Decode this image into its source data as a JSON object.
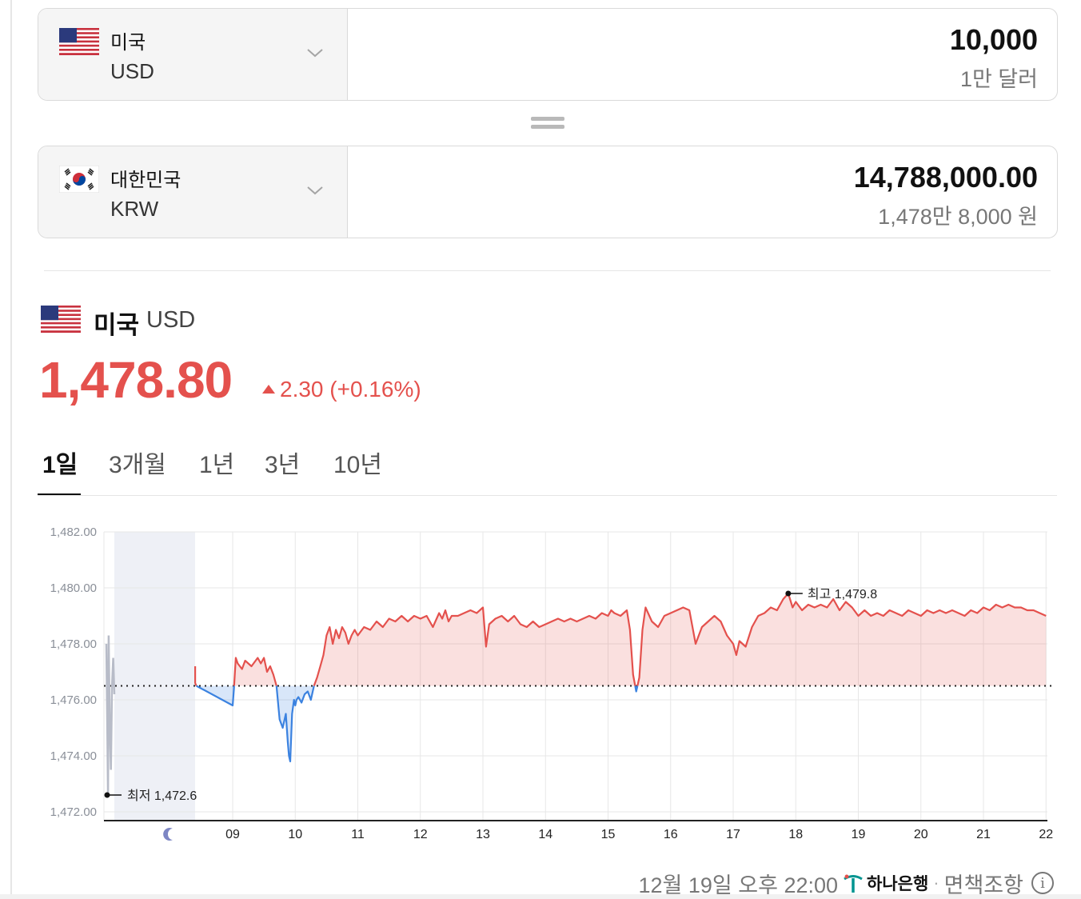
{
  "from_currency": {
    "country": "미국",
    "code": "USD",
    "amount": "10,000",
    "amount_text": "1만 달러"
  },
  "to_currency": {
    "country": "대한민국",
    "code": "KRW",
    "amount": "14,788,000.00",
    "amount_text": "1,478만 8,000 원"
  },
  "detail": {
    "country": "미국",
    "code": "USD",
    "price": "1,478.80",
    "change": "2.30 (+0.16%)",
    "change_direction": "up",
    "up_color": "#e4514d",
    "down_color": "#3b82e0"
  },
  "tabs": [
    {
      "label": "1일",
      "active": true
    },
    {
      "label": "3개월",
      "active": false
    },
    {
      "label": "1년",
      "active": false
    },
    {
      "label": "3년",
      "active": false
    },
    {
      "label": "10년",
      "active": false
    }
  ],
  "chart_data": {
    "type": "line",
    "ylim": [
      1472,
      1482
    ],
    "y_ticks": [
      "1,482.00",
      "1,480.00",
      "1,478.00",
      "1,476.00",
      "1,474.00",
      "1,472.00"
    ],
    "y_tick_values": [
      1482,
      1480,
      1478,
      1476,
      1474,
      1472
    ],
    "x_ticks": [
      "09",
      "10",
      "11",
      "12",
      "13",
      "14",
      "15",
      "16",
      "17",
      "18",
      "19",
      "20",
      "21",
      "22"
    ],
    "x_tick_values": [
      9,
      10,
      11,
      12,
      13,
      14,
      15,
      16,
      17,
      18,
      19,
      20,
      21,
      22
    ],
    "night_icon": "moon-icon",
    "baseline": 1476.5,
    "high_label": "최고 1,479.8",
    "high": {
      "x": 17.88,
      "y": 1479.8
    },
    "low_label": "최저 1,472.6",
    "low": {
      "x": 7.05,
      "y": 1472.6
    },
    "overnight_series": {
      "name": "",
      "x": [
        7.02,
        7.04,
        7.05,
        7.06,
        7.08,
        7.1,
        7.12,
        7.14,
        7.16
      ],
      "y": [
        1478.0,
        1474.5,
        1472.6,
        1478.3,
        1475.0,
        1473.5,
        1476.5,
        1477.5,
        1476.2
      ]
    },
    "series": [
      {
        "name": "",
        "x": [
          8.4,
          8.4,
          8.42,
          9.0,
          9.02,
          9.05,
          9.08,
          9.15,
          9.2,
          9.3,
          9.4,
          9.45,
          9.5,
          9.55,
          9.6,
          9.65,
          9.7,
          9.75,
          9.8,
          9.85,
          9.88,
          9.9,
          9.92,
          9.95,
          9.98,
          10.0,
          10.02,
          10.05,
          10.1,
          10.15,
          10.2,
          10.25,
          10.3,
          10.35,
          10.4,
          10.45,
          10.5,
          10.55,
          10.6,
          10.65,
          10.7,
          10.75,
          10.8,
          10.85,
          10.9,
          10.95,
          11.0,
          11.1,
          11.2,
          11.3,
          11.4,
          11.5,
          11.6,
          11.7,
          11.8,
          11.9,
          12.0,
          12.1,
          12.2,
          12.3,
          12.35,
          12.4,
          12.45,
          12.5,
          12.6,
          12.7,
          12.8,
          12.9,
          13.0,
          13.05,
          13.1,
          13.2,
          13.3,
          13.4,
          13.5,
          13.6,
          13.7,
          13.8,
          13.9,
          14.0,
          14.1,
          14.2,
          14.3,
          14.4,
          14.5,
          14.6,
          14.7,
          14.8,
          14.9,
          15.0,
          15.05,
          15.1,
          15.2,
          15.3,
          15.35,
          15.4,
          15.45,
          15.5,
          15.55,
          15.6,
          15.7,
          15.8,
          15.9,
          16.0,
          16.1,
          16.2,
          16.3,
          16.4,
          16.5,
          16.6,
          16.7,
          16.8,
          16.9,
          17.0,
          17.05,
          17.1,
          17.2,
          17.3,
          17.4,
          17.5,
          17.6,
          17.7,
          17.8,
          17.88,
          17.95,
          18.0,
          18.1,
          18.2,
          18.3,
          18.4,
          18.5,
          18.6,
          18.7,
          18.8,
          18.9,
          19.0,
          19.1,
          19.2,
          19.3,
          19.4,
          19.5,
          19.6,
          19.7,
          19.8,
          19.9,
          20.0,
          20.1,
          20.2,
          20.3,
          20.4,
          20.5,
          20.6,
          20.7,
          20.8,
          20.9,
          21.0,
          21.1,
          21.2,
          21.3,
          21.4,
          21.5,
          21.6,
          21.7,
          21.8,
          21.9,
          22.0
        ],
        "y": [
          1477.2,
          1476.6,
          1476.5,
          1475.8,
          1476.4,
          1477.5,
          1477.3,
          1477.1,
          1477.4,
          1477.2,
          1477.5,
          1477.3,
          1477.5,
          1477.0,
          1477.2,
          1476.9,
          1476.5,
          1475.3,
          1475.0,
          1475.5,
          1474.5,
          1474.0,
          1473.8,
          1475.5,
          1476.0,
          1475.8,
          1476.0,
          1476.1,
          1475.9,
          1476.2,
          1476.3,
          1476.0,
          1476.5,
          1476.8,
          1477.2,
          1477.6,
          1478.3,
          1478.6,
          1478.0,
          1478.5,
          1478.2,
          1478.6,
          1478.4,
          1478.0,
          1478.3,
          1478.5,
          1478.3,
          1478.6,
          1478.5,
          1478.8,
          1478.6,
          1478.9,
          1478.8,
          1479.0,
          1478.8,
          1479.0,
          1478.9,
          1479.0,
          1478.6,
          1479.1,
          1478.9,
          1479.2,
          1478.8,
          1479.0,
          1479.0,
          1479.1,
          1479.2,
          1479.1,
          1479.3,
          1477.9,
          1478.7,
          1478.9,
          1479.0,
          1478.8,
          1479.0,
          1478.7,
          1478.6,
          1478.8,
          1478.6,
          1478.7,
          1478.8,
          1478.9,
          1478.8,
          1478.9,
          1478.8,
          1478.9,
          1479.0,
          1478.9,
          1479.1,
          1479.0,
          1479.2,
          1479.1,
          1479.0,
          1479.2,
          1478.5,
          1476.9,
          1476.3,
          1476.8,
          1478.5,
          1479.3,
          1478.8,
          1478.6,
          1479.0,
          1479.1,
          1479.2,
          1479.3,
          1479.2,
          1478.0,
          1478.6,
          1478.8,
          1479.0,
          1478.8,
          1478.3,
          1478.0,
          1477.6,
          1478.1,
          1477.9,
          1478.6,
          1479.0,
          1479.1,
          1479.3,
          1479.2,
          1479.6,
          1479.8,
          1479.3,
          1479.5,
          1479.2,
          1479.4,
          1479.3,
          1479.4,
          1479.3,
          1479.6,
          1479.2,
          1479.5,
          1479.3,
          1479.0,
          1479.2,
          1479.0,
          1479.1,
          1479.0,
          1479.2,
          1479.1,
          1479.0,
          1479.2,
          1479.1,
          1479.0,
          1479.2,
          1479.1,
          1479.2,
          1479.1,
          1479.2,
          1479.1,
          1479.0,
          1479.2,
          1479.1,
          1479.3,
          1479.2,
          1479.4,
          1479.3,
          1479.4,
          1479.3,
          1479.3,
          1479.2,
          1479.2,
          1479.1,
          1479.0
        ]
      }
    ]
  },
  "footer": {
    "timestamp": "12월 19일 오후 22:00",
    "bank": "하나은행",
    "separator": "·",
    "disclaimer": "면책조항"
  }
}
